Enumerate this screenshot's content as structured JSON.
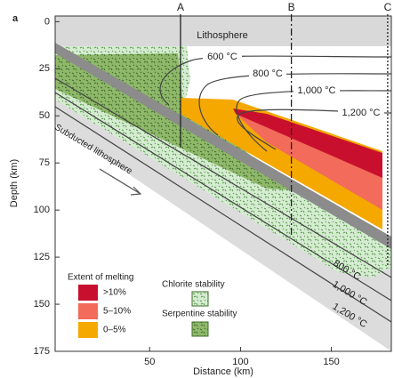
{
  "chart_data": {
    "type": "cross-section",
    "panel_label": "a",
    "xlabel": "Distance (km)",
    "ylabel": "Depth (km)",
    "xlim": [
      -2,
      183
    ],
    "ylim": [
      -3,
      175
    ],
    "y_inverted": true,
    "xticks": [
      50,
      100,
      150
    ],
    "yticks": [
      0,
      25,
      50,
      75,
      100,
      125,
      150,
      175
    ],
    "sections": [
      {
        "name": "A",
        "x": 67,
        "style": "solid"
      },
      {
        "name": "B",
        "x": 128,
        "style": "dashdot"
      },
      {
        "name": "C",
        "x": 181,
        "style": "dotted"
      }
    ],
    "region_labels": {
      "lithosphere": "Lithosphere",
      "subducted": "Subducted lithosphere"
    },
    "isotherm_labels": [
      "600 °C",
      "800 °C",
      "1,000 °C",
      "1,200 °C"
    ],
    "slab_isotherm_labels": [
      "800 °C",
      "1,000 °C",
      "1,200 °C"
    ],
    "melting_legend": {
      "title": "Extent of melting",
      "entries": [
        {
          "name": ">10%",
          "color": "#c8102e"
        },
        {
          "name": "5–10%",
          "color": "#f26b5b"
        },
        {
          "name": "0–5%",
          "color": "#f5a800"
        }
      ]
    },
    "stability_legend": [
      "Chlorite stability",
      "Serpentine stability"
    ]
  }
}
